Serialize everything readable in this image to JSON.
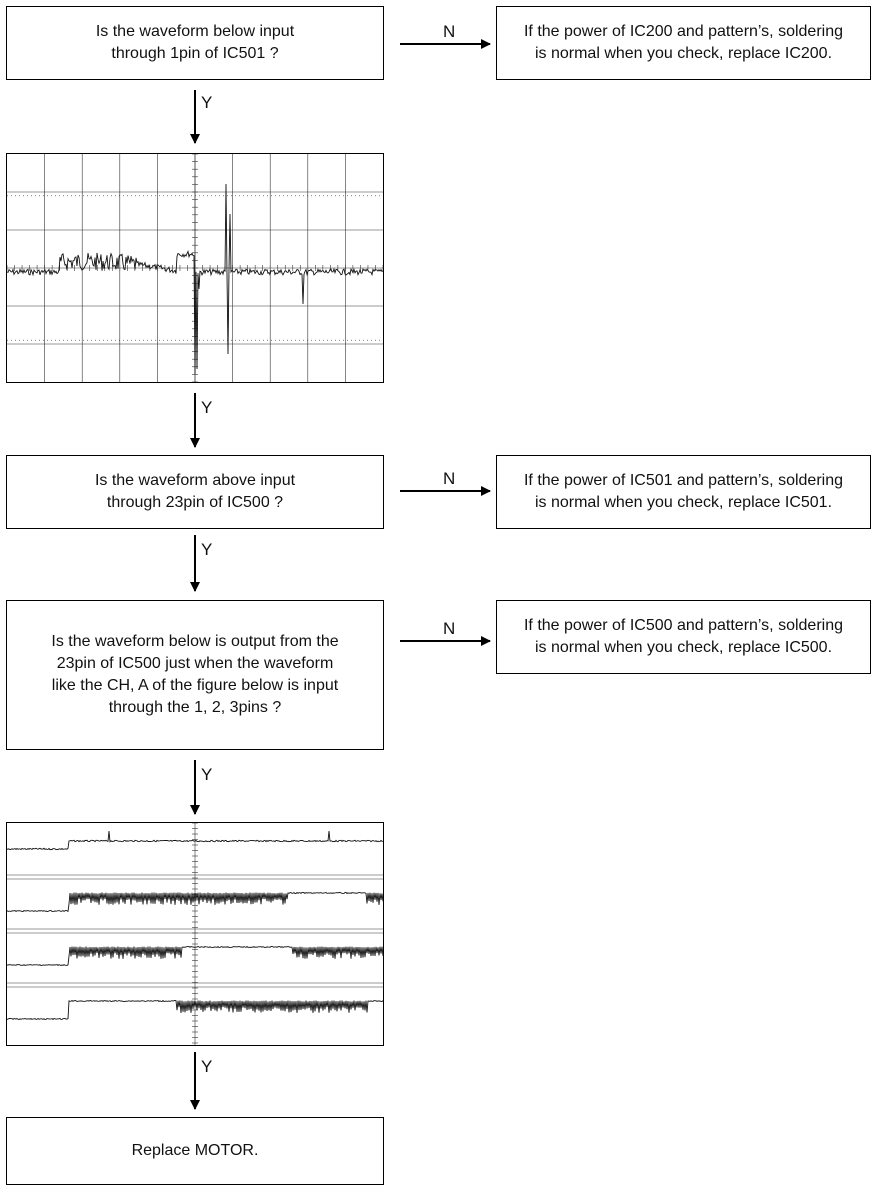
{
  "flowchart": {
    "q1": "Is the waveform below input\nthrough 1pin of IC501 ?",
    "r1": "If the power of IC200 and pattern’s, soldering\nis normal when you check, replace IC200.",
    "q2": "Is the waveform above input\nthrough 23pin of IC500 ?",
    "r2": "If the power of IC501 and pattern’s, soldering\nis normal when you check, replace IC501.",
    "q3": "Is the waveform below is output from the\n23pin of IC500 just when the waveform\nlike the CH, A of the figure below is input\nthrough the 1, 2, 3pins ?",
    "r3": "If the power of IC500 and pattern’s, soldering\nis normal when you check, replace IC500.",
    "final": "Replace MOTOR.",
    "yes_label": "Y",
    "no_label": "N"
  },
  "colors": {
    "line": "#000000",
    "grid": "#333333",
    "trace": "#111111"
  }
}
